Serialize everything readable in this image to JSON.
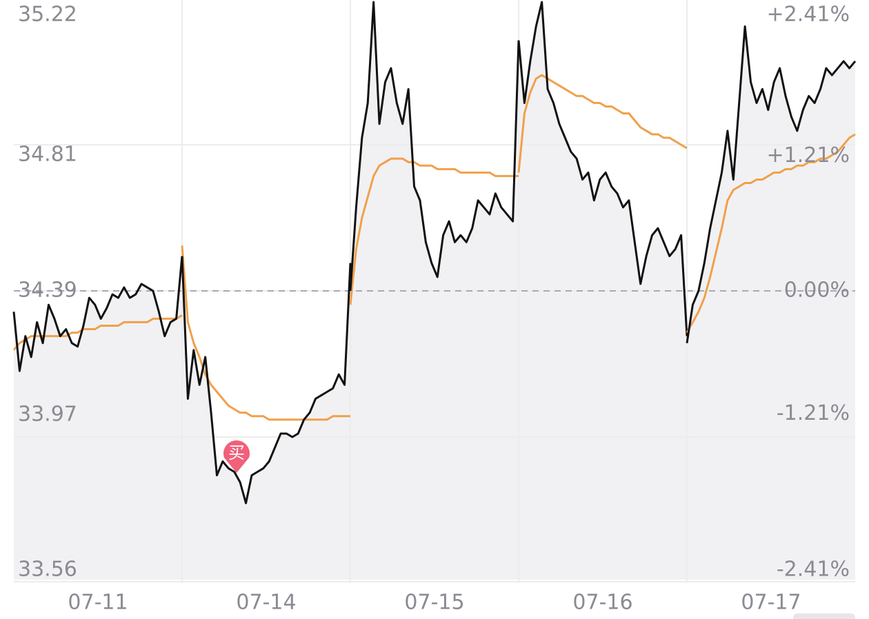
{
  "chart_data": {
    "type": "line",
    "ylim": [
      33.56,
      35.22
    ],
    "yticks": [
      33.56,
      33.97,
      34.39,
      34.81,
      35.22
    ],
    "y2lim": [
      -2.41,
      2.41
    ],
    "y2ticks": [
      {
        "value": -2.41,
        "label": "-2.41%"
      },
      {
        "value": -1.21,
        "label": "-1.21%"
      },
      {
        "value": 0,
        "label": "0.00%"
      },
      {
        "value": 1.21,
        "label": "+1.21%"
      },
      {
        "value": 2.41,
        "label": "+2.41%"
      }
    ],
    "grid": true,
    "price_color": "#111111",
    "avg_color": "#f0a04b",
    "area_color": "#f1f1f3",
    "buy_marker": "买",
    "days": [
      {
        "label": "07-11",
        "price": [
          34.33,
          34.16,
          34.26,
          34.2,
          34.3,
          34.24,
          34.35,
          34.31,
          34.26,
          34.28,
          34.24,
          34.23,
          34.29,
          34.37,
          34.35,
          34.31,
          34.34,
          34.38,
          34.37,
          34.4,
          34.37,
          34.38,
          34.41,
          34.4,
          34.39,
          34.33,
          34.26,
          34.3,
          34.31,
          34.49
        ],
        "avg": [
          34.22,
          34.24,
          34.25,
          34.26,
          34.26,
          34.26,
          34.26,
          34.26,
          34.26,
          34.26,
          34.27,
          34.27,
          34.28,
          34.28,
          34.28,
          34.29,
          34.29,
          34.29,
          34.29,
          34.3,
          34.3,
          34.3,
          34.3,
          34.3,
          34.31,
          34.31,
          34.31,
          34.31,
          34.31,
          34.32
        ]
      },
      {
        "label": "07-14",
        "price": [
          34.49,
          34.08,
          34.22,
          34.12,
          34.2,
          34.04,
          33.86,
          33.9,
          33.88,
          33.87,
          33.84,
          33.78,
          33.86,
          33.87,
          33.88,
          33.9,
          33.94,
          33.98,
          33.98,
          33.97,
          33.98,
          34.02,
          34.04,
          34.08,
          34.09,
          34.1,
          34.11,
          34.15,
          34.12,
          34.47
        ],
        "avg": [
          34.52,
          34.3,
          34.24,
          34.2,
          34.15,
          34.12,
          34.1,
          34.08,
          34.06,
          34.05,
          34.04,
          34.04,
          34.03,
          34.03,
          34.03,
          34.02,
          34.02,
          34.02,
          34.02,
          34.02,
          34.02,
          34.02,
          34.02,
          34.02,
          34.02,
          34.02,
          34.03,
          34.03,
          34.03,
          34.03
        ]
      },
      {
        "label": "07-15",
        "price": [
          34.39,
          34.63,
          34.83,
          34.93,
          35.22,
          34.87,
          34.99,
          35.03,
          34.93,
          34.87,
          34.97,
          34.69,
          34.65,
          34.53,
          34.47,
          34.43,
          34.55,
          34.59,
          34.53,
          34.55,
          34.53,
          34.57,
          34.65,
          34.63,
          34.61,
          34.67,
          34.63,
          34.61,
          34.59,
          35.11
        ],
        "avg": [
          34.35,
          34.51,
          34.6,
          34.66,
          34.72,
          34.75,
          34.76,
          34.77,
          34.77,
          34.77,
          34.76,
          34.76,
          34.75,
          34.75,
          34.75,
          34.74,
          34.74,
          34.74,
          34.74,
          34.73,
          34.73,
          34.73,
          34.73,
          34.73,
          34.73,
          34.72,
          34.72,
          34.72,
          34.72,
          34.72
        ]
      },
      {
        "label": "07-16",
        "price": [
          35.11,
          34.93,
          35.05,
          35.15,
          35.22,
          34.97,
          34.93,
          34.87,
          34.83,
          34.79,
          34.77,
          34.71,
          34.73,
          34.65,
          34.71,
          34.73,
          34.69,
          34.67,
          34.63,
          34.65,
          34.53,
          34.41,
          34.49,
          34.55,
          34.57,
          34.53,
          34.49,
          34.51,
          34.55,
          34.26
        ],
        "avg": [
          34.73,
          34.9,
          34.96,
          35.0,
          35.01,
          35.0,
          34.99,
          34.98,
          34.97,
          34.96,
          34.95,
          34.95,
          34.94,
          34.93,
          34.93,
          34.92,
          34.92,
          34.91,
          34.9,
          34.9,
          34.88,
          34.86,
          34.85,
          34.84,
          34.84,
          34.83,
          34.83,
          34.82,
          34.81,
          34.8
        ]
      },
      {
        "label": "07-17",
        "price": [
          34.24,
          34.35,
          34.39,
          34.47,
          34.57,
          34.65,
          34.73,
          34.85,
          34.71,
          34.93,
          35.15,
          34.99,
          34.93,
          34.97,
          34.91,
          34.99,
          35.03,
          34.95,
          34.89,
          34.85,
          34.91,
          34.95,
          34.93,
          34.97,
          35.03,
          35.01,
          35.03,
          35.05,
          35.03,
          35.05
        ],
        "avg": [
          34.27,
          34.3,
          34.33,
          34.37,
          34.43,
          34.5,
          34.57,
          34.65,
          34.68,
          34.69,
          34.7,
          34.7,
          34.71,
          34.71,
          34.72,
          34.73,
          34.73,
          34.74,
          34.74,
          34.75,
          34.75,
          34.76,
          34.76,
          34.77,
          34.77,
          34.78,
          34.79,
          34.81,
          34.83,
          34.84
        ]
      }
    ]
  }
}
